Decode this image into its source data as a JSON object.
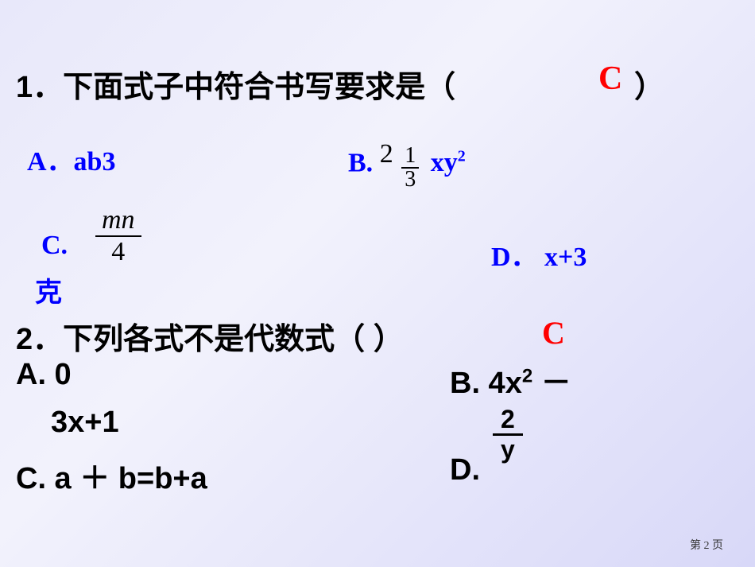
{
  "q1": {
    "stem": "1．下面式子中符合书写要求是（",
    "paren_close": "）",
    "answer": "C",
    "optA": "A．ab3",
    "optB_label": "B.",
    "optB_mixed_whole": "2",
    "optB_mixed_num": "1",
    "optB_mixed_den": "3",
    "optB_after": "xy",
    "optB_after_sup": "2",
    "optC": "C.",
    "optC_num": "mn",
    "optC_den": "4",
    "optC_ke": "克",
    "optD": "D．  x+3"
  },
  "q2": {
    "stem": "2．下列各式不是代数式（     ）",
    "answer": "C",
    "optA": "A. 0",
    "optB_part1": "B. 4x",
    "optB_sup": "2",
    "optB_minus": " －",
    "optB_part2": "3x+1",
    "optC": "C. a ＋ b=b+a",
    "optD": "D.",
    "optD_num": "2",
    "optD_den": "y"
  },
  "footer": "第 2 页"
}
